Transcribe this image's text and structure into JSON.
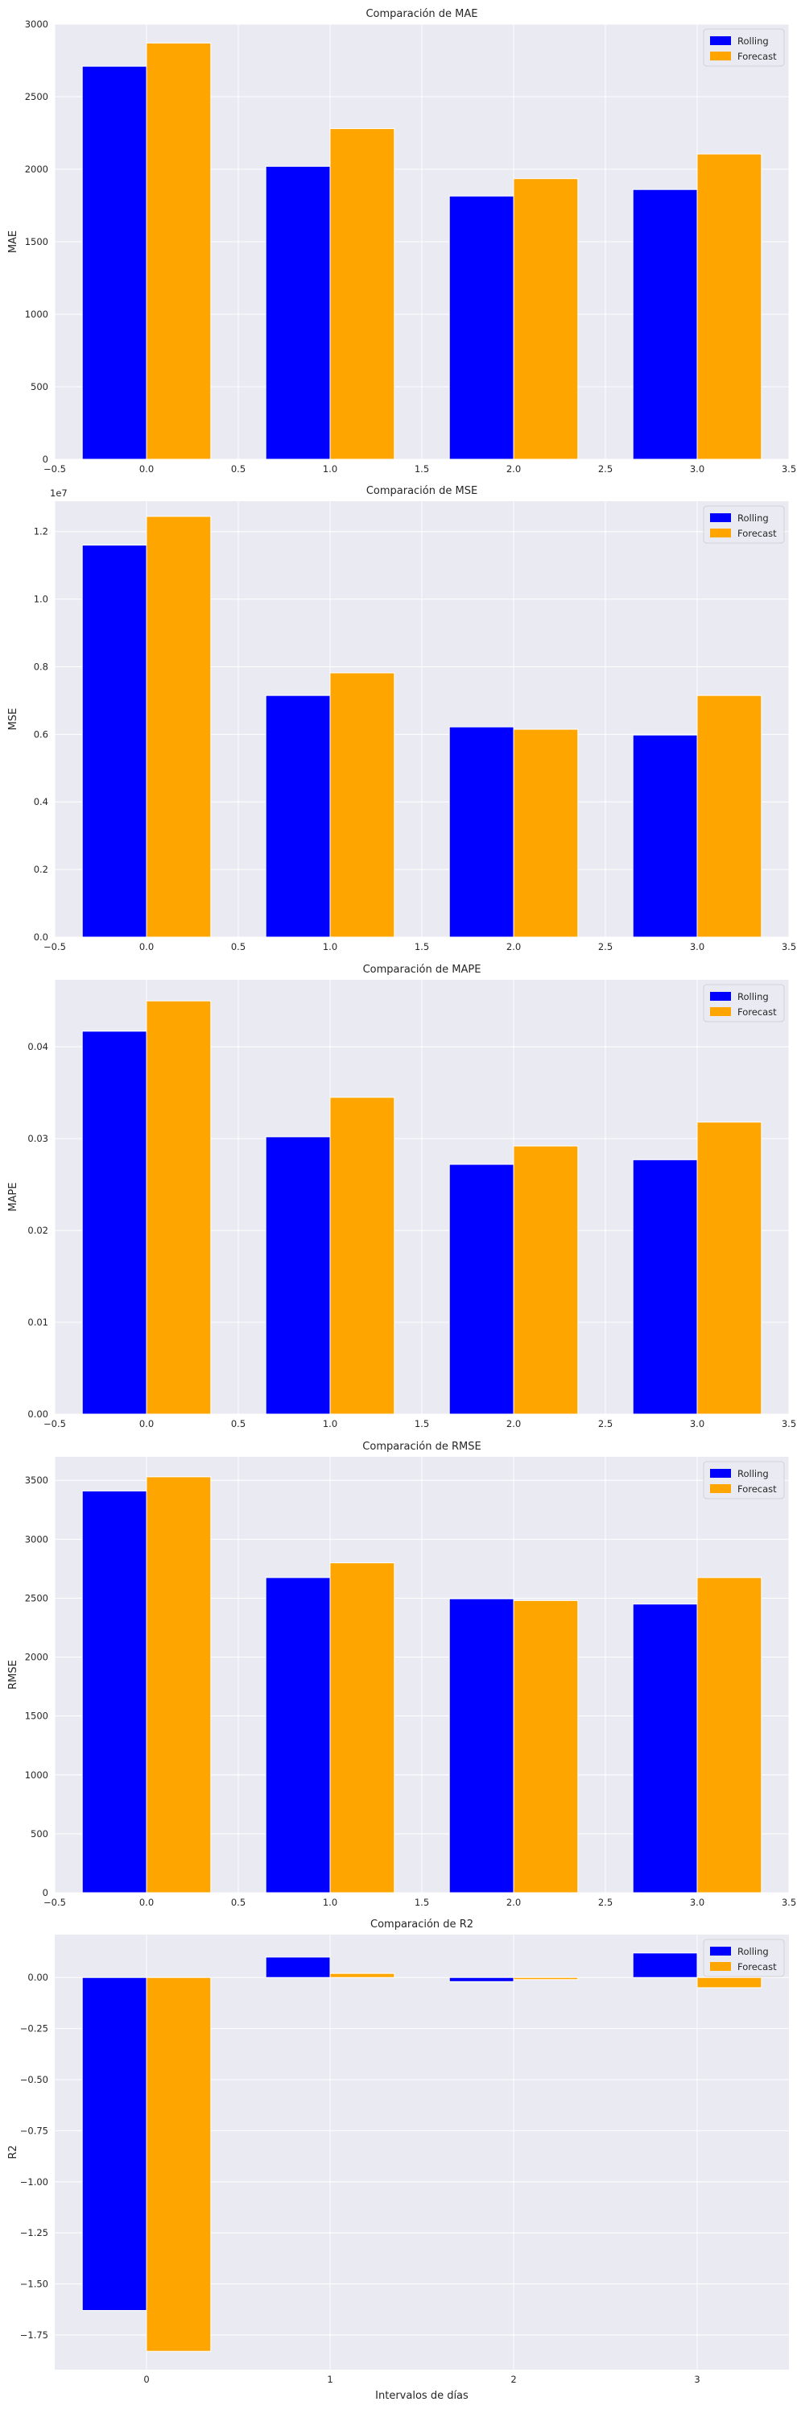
{
  "chart_data": [
    {
      "type": "bar",
      "title": "Comparación de MAE",
      "xlabel": "",
      "ylabel": "MAE",
      "x": [
        0,
        1,
        2,
        3
      ],
      "series": [
        {
          "name": "Rolling",
          "color": "#0000ff",
          "values": [
            2710,
            2020,
            1815,
            1860
          ]
        },
        {
          "name": "Forecast",
          "color": "#ffa500",
          "values": [
            2870,
            2280,
            1935,
            2105
          ]
        }
      ],
      "xlim": [
        -0.5,
        3.5
      ],
      "ylim": [
        0,
        3000
      ],
      "xticks": [
        "−0.5",
        "0.0",
        "0.5",
        "1.0",
        "1.5",
        "2.0",
        "2.5",
        "3.0",
        "3.5"
      ],
      "yticks": [
        "0",
        "500",
        "1000",
        "1500",
        "2000",
        "2500",
        "3000"
      ],
      "legend_position": "top-right",
      "grid": true
    },
    {
      "type": "bar",
      "title": "Comparación de MSE",
      "xlabel": "",
      "ylabel": "MSE",
      "offset_label": "1e7",
      "x": [
        0,
        1,
        2,
        3
      ],
      "series": [
        {
          "name": "Rolling",
          "color": "#0000ff",
          "values": [
            11600000,
            7150000,
            6220000,
            5980000
          ]
        },
        {
          "name": "Forecast",
          "color": "#ffa500",
          "values": [
            12450000,
            7820000,
            6150000,
            7150000
          ]
        }
      ],
      "xlim": [
        -0.5,
        3.5
      ],
      "ylim": [
        0,
        12900000
      ],
      "xticks": [
        "−0.5",
        "0.0",
        "0.5",
        "1.0",
        "1.5",
        "2.0",
        "2.5",
        "3.0",
        "3.5"
      ],
      "yticks": [
        "0.0",
        "0.2",
        "0.4",
        "0.6",
        "0.8",
        "1.0",
        "1.2"
      ],
      "legend_position": "top-right",
      "grid": true
    },
    {
      "type": "bar",
      "title": "Comparación de MAPE",
      "xlabel": "",
      "ylabel": "MAPE",
      "x": [
        0,
        1,
        2,
        3
      ],
      "series": [
        {
          "name": "Rolling",
          "color": "#0000ff",
          "values": [
            0.0417,
            0.0302,
            0.0272,
            0.0277
          ]
        },
        {
          "name": "Forecast",
          "color": "#ffa500",
          "values": [
            0.045,
            0.0345,
            0.0292,
            0.0318
          ]
        }
      ],
      "xlim": [
        -0.5,
        3.5
      ],
      "ylim": [
        0,
        0.0473
      ],
      "xticks": [
        "−0.5",
        "0.0",
        "0.5",
        "1.0",
        "1.5",
        "2.0",
        "2.5",
        "3.0",
        "3.5"
      ],
      "yticks": [
        "0.00",
        "0.01",
        "0.02",
        "0.03",
        "0.04"
      ],
      "legend_position": "top-right",
      "grid": true
    },
    {
      "type": "bar",
      "title": "Comparación de RMSE",
      "xlabel": "",
      "ylabel": "RMSE",
      "x": [
        0,
        1,
        2,
        3
      ],
      "series": [
        {
          "name": "Rolling",
          "color": "#0000ff",
          "values": [
            3410,
            2675,
            2495,
            2450
          ]
        },
        {
          "name": "Forecast",
          "color": "#ffa500",
          "values": [
            3530,
            2800,
            2480,
            2675
          ]
        }
      ],
      "xlim": [
        -0.5,
        3.5
      ],
      "ylim": [
        0,
        3700
      ],
      "xticks": [
        "−0.5",
        "0.0",
        "0.5",
        "1.0",
        "1.5",
        "2.0",
        "2.5",
        "3.0",
        "3.5"
      ],
      "yticks": [
        "0",
        "500",
        "1000",
        "1500",
        "2000",
        "2500",
        "3000",
        "3500"
      ],
      "legend_position": "top-right",
      "grid": true
    },
    {
      "type": "bar",
      "title": "Comparación de R2",
      "xlabel": "Intervalos de días",
      "ylabel": "R2",
      "x": [
        0,
        1,
        2,
        3
      ],
      "series": [
        {
          "name": "Rolling",
          "color": "#0000ff",
          "values": [
            -1.63,
            0.1,
            -0.02,
            0.12
          ]
        },
        {
          "name": "Forecast",
          "color": "#ffa500",
          "values": [
            -1.83,
            0.02,
            -0.01,
            -0.05
          ]
        }
      ],
      "xlim": [
        -0.5,
        3.5
      ],
      "ylim": [
        -1.92,
        0.21
      ],
      "xticks": [
        "0",
        "1",
        "2",
        "3"
      ],
      "ytick_values": [
        0,
        -0.25,
        -0.5,
        -0.75,
        -1.0,
        -1.25,
        -1.5,
        -1.75
      ],
      "yticks": [
        "0.00",
        "−0.25",
        "−0.50",
        "−0.75",
        "−1.00",
        "−1.25",
        "−1.50",
        "−1.75"
      ],
      "legend_position": "top-right",
      "grid": true
    }
  ]
}
